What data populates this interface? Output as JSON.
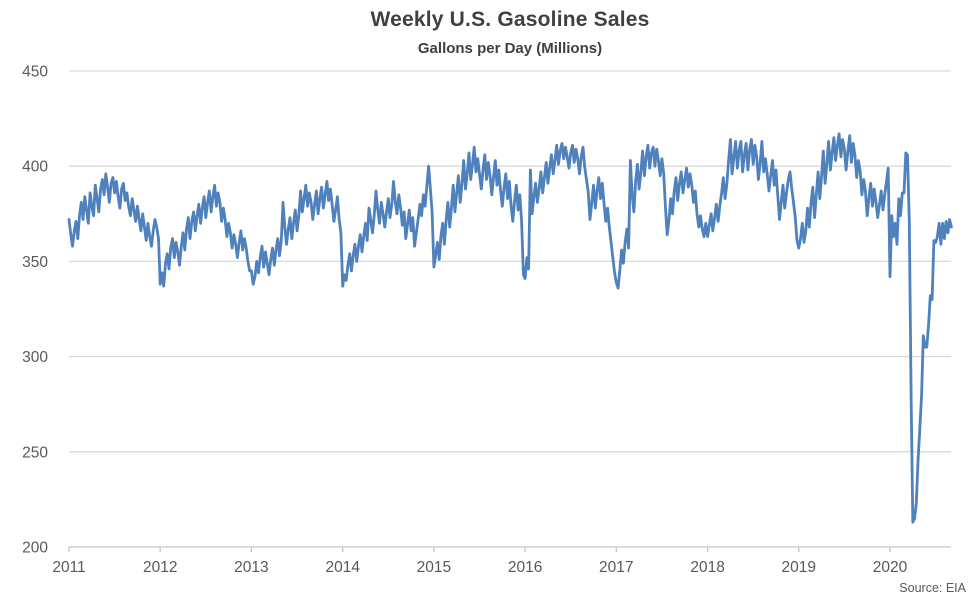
{
  "page": {
    "title": "Weekly U.S. Gasoline Sales",
    "subtitle": "Gallons per Day (Millions)",
    "source": "Source: EIA"
  },
  "chart_data": {
    "type": "line",
    "title": "Weekly U.S. Gasoline Sales",
    "subtitle": "Gallons per Day (Millions)",
    "source": "Source: EIA",
    "series_name": "Weekly U.S. gasoline sales, million gallons per day",
    "line_color": "#4f81bd",
    "grid_color": "#d9d9d9",
    "axis_color": "#c6c6c6",
    "tick_label_color": "#595959",
    "grid": true,
    "legend": "none",
    "ylim": [
      200,
      450
    ],
    "yticks": [
      200,
      250,
      300,
      350,
      400,
      450
    ],
    "x_start_year": 2011,
    "x_end_approx": 2020.7,
    "points_per_year": 52,
    "x_axis_years": [
      2011,
      2012,
      2013,
      2014,
      2015,
      2016,
      2017,
      2018,
      2019,
      2020
    ],
    "notable_points": {
      "covid_min_april_2020": 213,
      "pre_covid_peak_march_2020": 407,
      "new_year_2020_dip": 342,
      "max_summer_2019": 417
    },
    "values": [
      372,
      364,
      358,
      366,
      371,
      362,
      374,
      381,
      372,
      384,
      377,
      370,
      386,
      379,
      374,
      390,
      383,
      376,
      388,
      393,
      385,
      396,
      389,
      381,
      391,
      394,
      386,
      392,
      384,
      378,
      388,
      391,
      382,
      386,
      379,
      374,
      383,
      377,
      371,
      379,
      372,
      366,
      375,
      368,
      361,
      370,
      363,
      358,
      366,
      372,
      368,
      362,
      338,
      344,
      337,
      349,
      354,
      346,
      357,
      362,
      352,
      360,
      355,
      348,
      358,
      365,
      356,
      367,
      373,
      362,
      371,
      376,
      366,
      374,
      380,
      370,
      378,
      384,
      373,
      381,
      387,
      376,
      384,
      390,
      379,
      386,
      381,
      371,
      378,
      372,
      363,
      370,
      365,
      357,
      364,
      359,
      352,
      360,
      366,
      356,
      362,
      357,
      350,
      345,
      345,
      338,
      342,
      350,
      344,
      352,
      358,
      347,
      355,
      349,
      343,
      351,
      357,
      348,
      356,
      362,
      353,
      361,
      381,
      368,
      359,
      367,
      373,
      362,
      370,
      377,
      366,
      374,
      387,
      376,
      383,
      390,
      379,
      386,
      381,
      372,
      380,
      387,
      375,
      383,
      389,
      378,
      385,
      392,
      382,
      388,
      380,
      371,
      377,
      384,
      372,
      365,
      337,
      343,
      340,
      348,
      354,
      345,
      353,
      359,
      350,
      358,
      364,
      355,
      363,
      370,
      361,
      378,
      372,
      365,
      374,
      387,
      377,
      370,
      381,
      375,
      368,
      376,
      383,
      373,
      380,
      392,
      381,
      375,
      385,
      378,
      369,
      376,
      362,
      370,
      377,
      366,
      373,
      358,
      365,
      372,
      380,
      374,
      385,
      379,
      390,
      400,
      388,
      376,
      347,
      353,
      360,
      351,
      363,
      370,
      359,
      372,
      381,
      368,
      378,
      390,
      376,
      386,
      395,
      381,
      391,
      403,
      388,
      396,
      407,
      393,
      401,
      410,
      397,
      404,
      396,
      388,
      398,
      406,
      393,
      402,
      395,
      385,
      394,
      403,
      390,
      398,
      387,
      379,
      389,
      396,
      383,
      392,
      379,
      371,
      382,
      390,
      377,
      385,
      371,
      343,
      341,
      352,
      346,
      398,
      375,
      384,
      391,
      381,
      388,
      397,
      386,
      394,
      402,
      391,
      399,
      406,
      396,
      403,
      411,
      401,
      408,
      412,
      404,
      410,
      405,
      399,
      407,
      411,
      402,
      409,
      404,
      396,
      405,
      410,
      399,
      393,
      386,
      372,
      381,
      390,
      378,
      387,
      394,
      383,
      391,
      380,
      371,
      378,
      368,
      360,
      352,
      344,
      339,
      336,
      345,
      356,
      349,
      360,
      367,
      357,
      403,
      385,
      376,
      392,
      401,
      388,
      397,
      408,
      395,
      405,
      411,
      399,
      407,
      410,
      400,
      409,
      403,
      395,
      404,
      396,
      378,
      364,
      372,
      383,
      375,
      387,
      394,
      382,
      391,
      397,
      386,
      393,
      399,
      389,
      396,
      390,
      381,
      387,
      375,
      368,
      374,
      367,
      363,
      370,
      363,
      369,
      375,
      366,
      373,
      380,
      371,
      379,
      386,
      394,
      383,
      391,
      403,
      414,
      396,
      405,
      413,
      399,
      408,
      413,
      397,
      406,
      412,
      398,
      409,
      414,
      401,
      411,
      405,
      393,
      402,
      413,
      397,
      404,
      396,
      387,
      395,
      403,
      390,
      398,
      385,
      372,
      381,
      390,
      378,
      386,
      393,
      397,
      388,
      381,
      373,
      361,
      357,
      362,
      370,
      360,
      366,
      378,
      368,
      381,
      389,
      373,
      385,
      397,
      383,
      395,
      408,
      391,
      401,
      413,
      398,
      407,
      415,
      403,
      411,
      417,
      405,
      414,
      409,
      398,
      408,
      416,
      402,
      412,
      406,
      394,
      403,
      397,
      385,
      393,
      387,
      374,
      383,
      391,
      379,
      388,
      381,
      373,
      380,
      387,
      377,
      385,
      392,
      399,
      342,
      374,
      363,
      370,
      359,
      383,
      374,
      386,
      386,
      407,
      406,
      371,
      280,
      213,
      215,
      223,
      246,
      262,
      280,
      311,
      305,
      305,
      317,
      332,
      330,
      361,
      360,
      363,
      370,
      359,
      370,
      362,
      371,
      365,
      372,
      368
    ]
  }
}
